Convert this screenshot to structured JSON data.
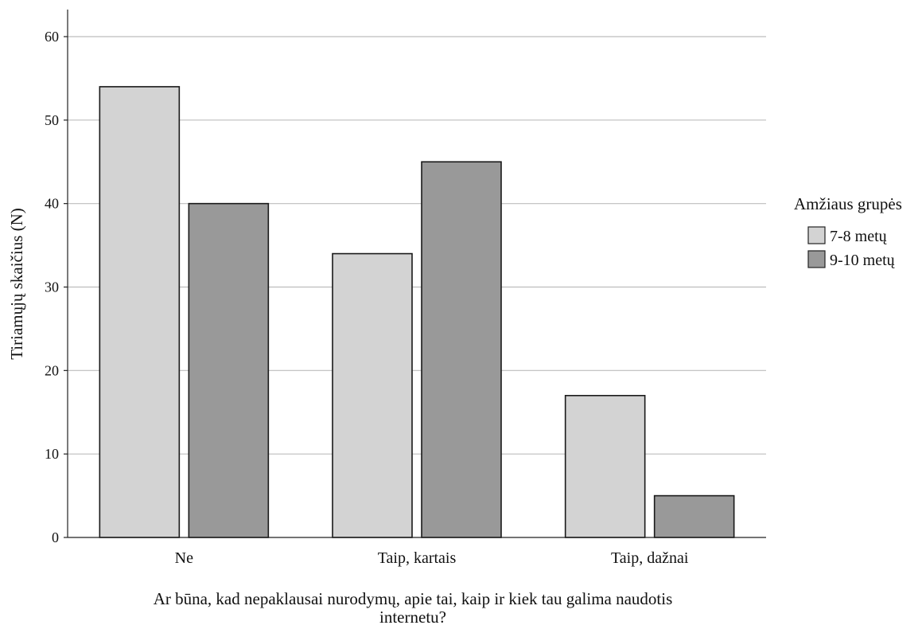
{
  "chart_data": {
    "type": "bar",
    "categories": [
      "Ne",
      "Taip, kartais",
      "Taip, dažnai"
    ],
    "series": [
      {
        "name": "7-8 metų",
        "values": [
          54,
          34,
          17
        ],
        "color": "#d3d3d3"
      },
      {
        "name": "9-10 metų",
        "values": [
          40,
          45,
          5
        ],
        "color": "#999999"
      }
    ],
    "xlabel_lines": [
      "Ar būna, kad nepaklausai nurodymų, apie tai, kaip ir kiek tau galima naudotis",
      "internetu?"
    ],
    "ylabel": "Tiriamųjų skaičius (N)",
    "ylim": [
      0,
      60
    ],
    "yticks": [
      0,
      10,
      20,
      30,
      40,
      50,
      60
    ],
    "grid": true,
    "legend": {
      "title": "Amžiaus grupės",
      "placement": "right"
    }
  }
}
